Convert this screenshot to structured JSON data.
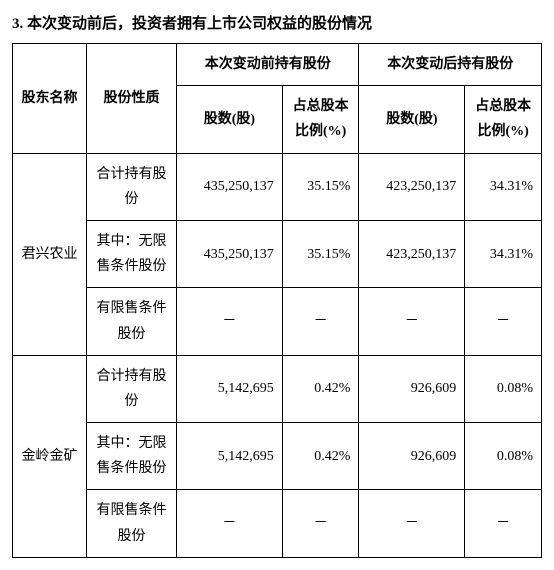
{
  "title": "3. 本次变动前后，投资者拥有上市公司权益的股份情况",
  "headers": {
    "shareholder": "股东名称",
    "shareType": "股份性质",
    "before": "本次变动前持有股份",
    "after": "本次变动后持有股份",
    "shares": "股数(股)",
    "pct": "占总股本比例(%)"
  },
  "rowLabels": {
    "total": "合计持有股份",
    "unrestricted": "其中：无限售条件股份",
    "restricted": "有限售条件股份"
  },
  "shareholders": [
    {
      "name": "君兴农业",
      "total": {
        "beforeShares": "435,250,137",
        "beforePct": "35.15%",
        "afterShares": "423,250,137",
        "afterPct": "34.31%"
      },
      "unrestricted": {
        "beforeShares": "435,250,137",
        "beforePct": "35.15%",
        "afterShares": "423,250,137",
        "afterPct": "34.31%"
      },
      "restricted": {
        "beforeShares": "－",
        "beforePct": "－",
        "afterShares": "－",
        "afterPct": "－"
      }
    },
    {
      "name": "金岭金矿",
      "total": {
        "beforeShares": "5,142,695",
        "beforePct": "0.42%",
        "afterShares": "926,609",
        "afterPct": "0.08%"
      },
      "unrestricted": {
        "beforeShares": "5,142,695",
        "beforePct": "0.42%",
        "afterShares": "926,609",
        "afterPct": "0.08%"
      },
      "restricted": {
        "beforeShares": "－",
        "beforePct": "－",
        "afterShares": "－",
        "afterPct": "－"
      }
    }
  ]
}
